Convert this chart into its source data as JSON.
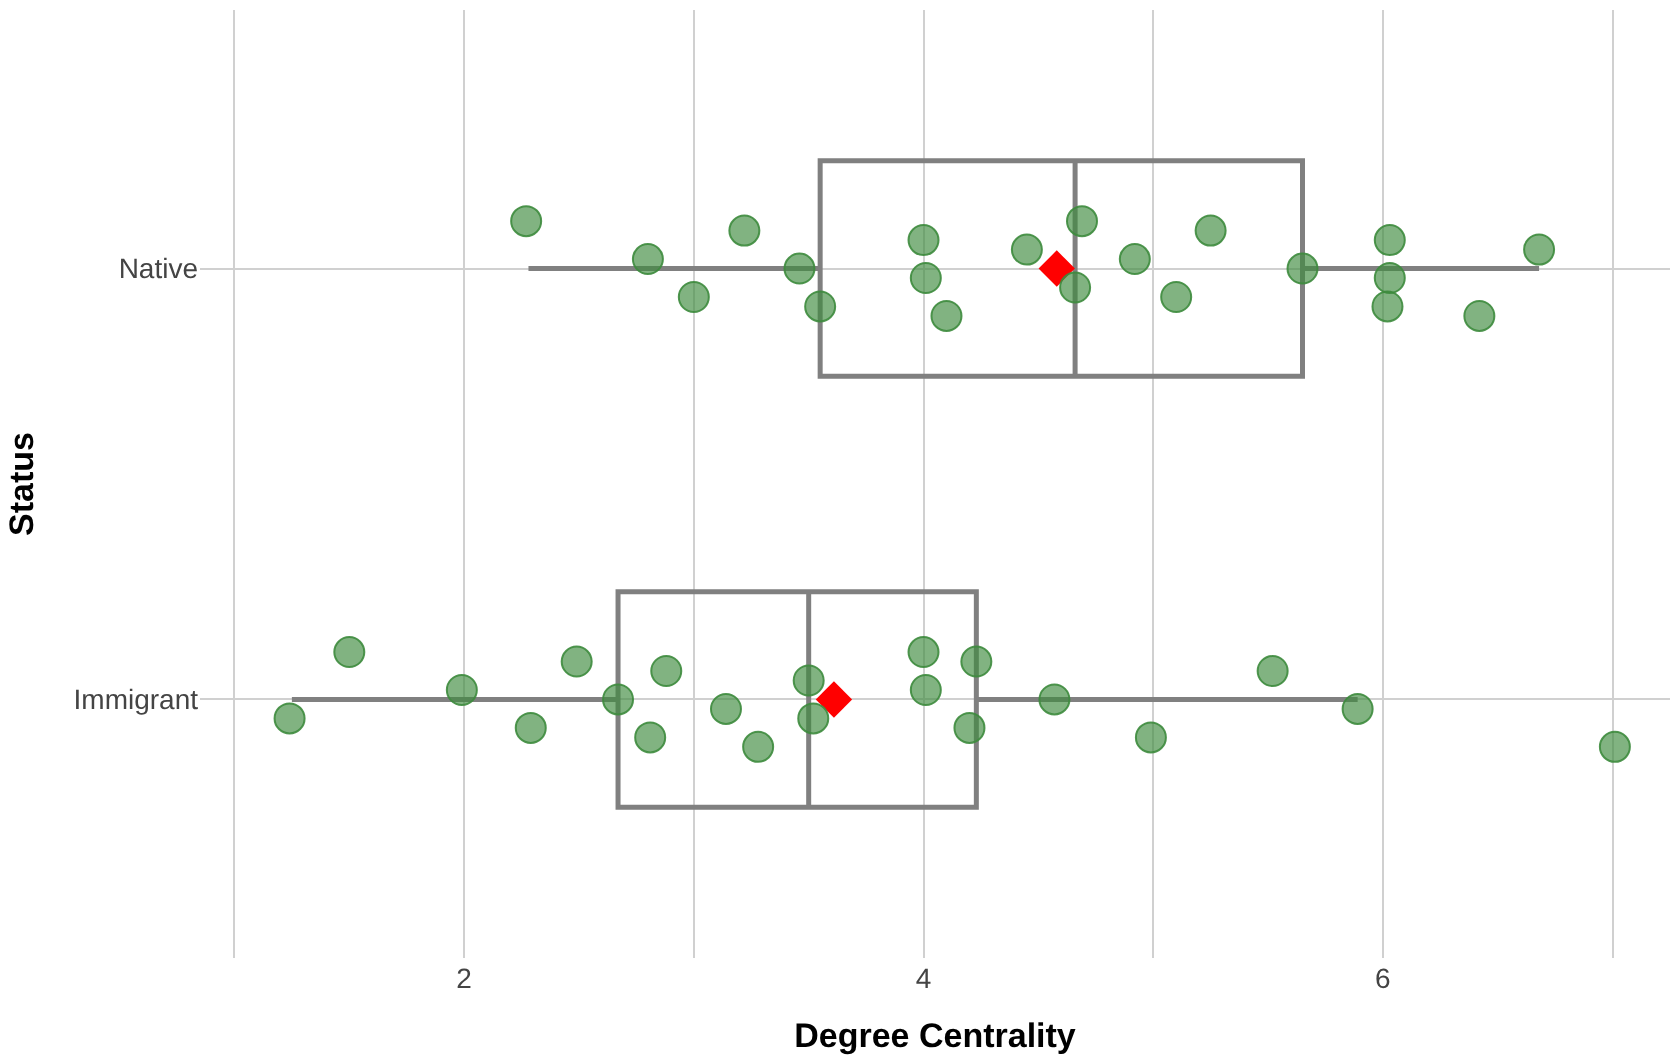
{
  "chart_data": {
    "type": "box",
    "orientation": "horizontal",
    "xlabel": "Degree Centrality",
    "ylabel": "Status",
    "categories": [
      "Native",
      "Immigrant"
    ],
    "xlim": [
      0.85,
      7.25
    ],
    "xticks": [
      {
        "value": 1,
        "label": null
      },
      2,
      {
        "value": 3,
        "label": null
      },
      4,
      {
        "value": 5,
        "label": null
      },
      6,
      {
        "value": 7,
        "label": null
      }
    ],
    "grid": true,
    "series": [
      {
        "color": "#808080",
        "boxes": [
          {
            "low": 2.28,
            "q1": 3.55,
            "median": 4.66,
            "q3": 5.65,
            "high": 6.68,
            "mean": 4.58
          },
          {
            "low": 1.25,
            "q1": 2.67,
            "median": 3.5,
            "q3": 4.23,
            "high": 5.89,
            "mean": 3.61
          }
        ]
      },
      {
        "type": "scatter",
        "color": "#3d8b3d",
        "marker": "circle",
        "x": [
          "Native",
          "Native",
          "Native",
          "Native",
          "Native",
          "Native",
          "Native",
          "Native",
          "Native",
          "Native",
          "Native",
          "Native",
          "Native",
          "Native",
          "Native",
          "Native",
          "Native",
          "Native",
          "Native",
          "Native",
          "Native",
          "Immigrant",
          "Immigrant",
          "Immigrant",
          "Immigrant",
          "Immigrant",
          "Immigrant",
          "Immigrant",
          "Immigrant",
          "Immigrant",
          "Immigrant",
          "Immigrant",
          "Immigrant",
          "Immigrant",
          "Immigrant",
          "Immigrant",
          "Immigrant",
          "Immigrant",
          "Immigrant",
          "Immigrant",
          "Immigrant",
          "Immigrant"
        ],
        "values": [
          2.27,
          2.8,
          3.0,
          3.22,
          3.46,
          3.55,
          4.0,
          4.01,
          4.1,
          4.45,
          4.66,
          4.69,
          4.92,
          5.1,
          5.25,
          5.65,
          6.02,
          6.03,
          6.03,
          6.42,
          6.68,
          1.24,
          1.5,
          1.99,
          2.29,
          2.49,
          2.67,
          2.81,
          2.88,
          3.14,
          3.28,
          3.5,
          3.52,
          4.0,
          4.01,
          4.2,
          4.23,
          4.57,
          4.99,
          5.52,
          5.89,
          7.01
        ]
      }
    ]
  }
}
